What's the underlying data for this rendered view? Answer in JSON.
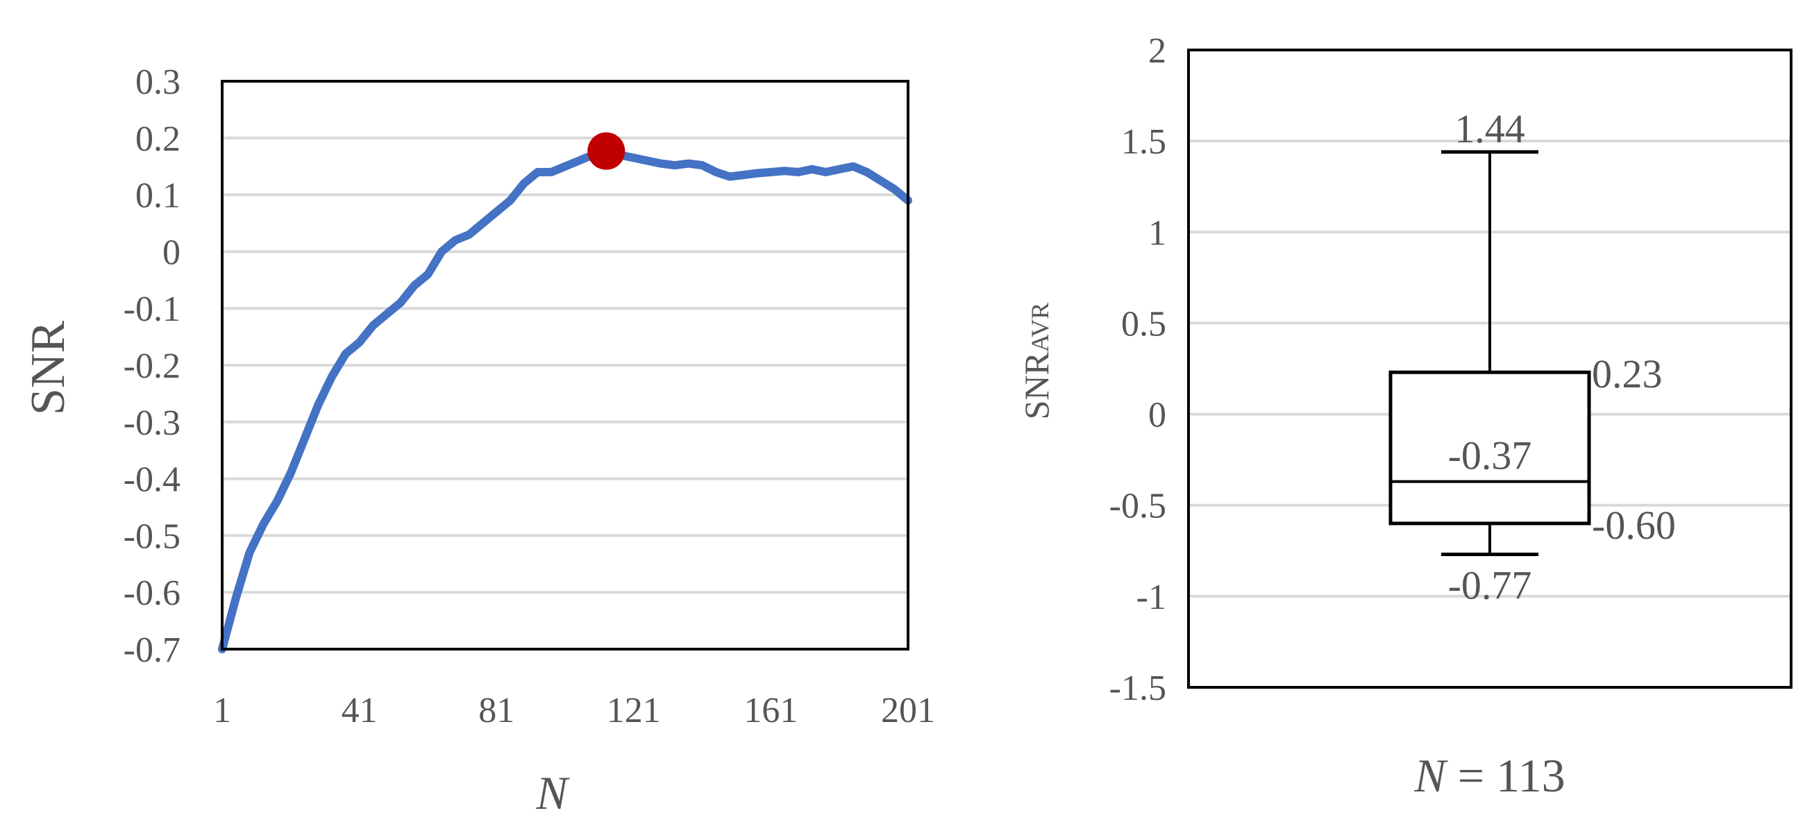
{
  "chart_data": [
    {
      "type": "line",
      "ylabel": "SNR",
      "xlabel": "N",
      "x_tick_labels": [
        "1",
        "41",
        "81",
        "121",
        "161",
        "201"
      ],
      "x_ticks": [
        1,
        41,
        81,
        121,
        161,
        201
      ],
      "xlim": [
        1,
        201
      ],
      "ylim": [
        -0.7,
        0.3
      ],
      "y_ticks": [
        0.3,
        0.2,
        0.1,
        0,
        -0.1,
        -0.2,
        -0.3,
        -0.4,
        -0.5,
        -0.6,
        -0.7
      ],
      "y_tick_labels": [
        "0.3",
        "0.2",
        "0.1",
        "0",
        "-0.1",
        "-0.2",
        "-0.3",
        "-0.4",
        "-0.5",
        "-0.6",
        "-0.7"
      ],
      "grid": true,
      "line_color": "#4472c4",
      "marker_color": "#c00000",
      "highlight": {
        "x": 113,
        "y": 0.177
      },
      "series": [
        {
          "x": [
            1,
            5,
            9,
            13,
            17,
            21,
            25,
            29,
            33,
            37,
            41,
            45,
            49,
            53,
            57,
            61,
            65,
            69,
            73,
            77,
            81,
            85,
            89,
            93,
            97,
            101,
            105,
            109,
            113,
            117,
            121,
            125,
            129,
            133,
            137,
            141,
            145,
            149,
            153,
            157,
            161,
            165,
            169,
            173,
            177,
            181,
            185,
            189,
            193,
            197,
            201
          ],
          "y": [
            -0.7,
            -0.61,
            -0.53,
            -0.48,
            -0.44,
            -0.39,
            -0.33,
            -0.27,
            -0.22,
            -0.18,
            -0.16,
            -0.13,
            -0.11,
            -0.09,
            -0.06,
            -0.04,
            0.0,
            0.02,
            0.03,
            0.05,
            0.07,
            0.09,
            0.12,
            0.14,
            0.14,
            0.15,
            0.16,
            0.17,
            0.177,
            0.17,
            0.165,
            0.16,
            0.155,
            0.152,
            0.155,
            0.152,
            0.14,
            0.132,
            0.135,
            0.138,
            0.14,
            0.142,
            0.14,
            0.145,
            0.14,
            0.145,
            0.15,
            0.14,
            0.125,
            0.11,
            0.09
          ]
        }
      ]
    },
    {
      "type": "box",
      "ylabel_main": "SNR",
      "ylabel_sub": "AVR",
      "xlabel_var": "N",
      "xlabel_rest": " = 113",
      "ylim": [
        -1.5,
        2
      ],
      "y_ticks": [
        2,
        1.5,
        1,
        0.5,
        0,
        -0.5,
        -1,
        -1.5
      ],
      "y_tick_labels": [
        "2",
        "1.5",
        "1",
        "0.5",
        "0",
        "-0.5",
        "-1",
        "-1.5"
      ],
      "grid": true,
      "stats": {
        "max": 1.44,
        "q3": 0.23,
        "median": -0.37,
        "q1": -0.6,
        "min": -0.77
      },
      "labels": {
        "max": "1.44",
        "q3": "0.23",
        "median": "-0.37",
        "q1": "-0.60",
        "min": "-0.77"
      }
    }
  ]
}
